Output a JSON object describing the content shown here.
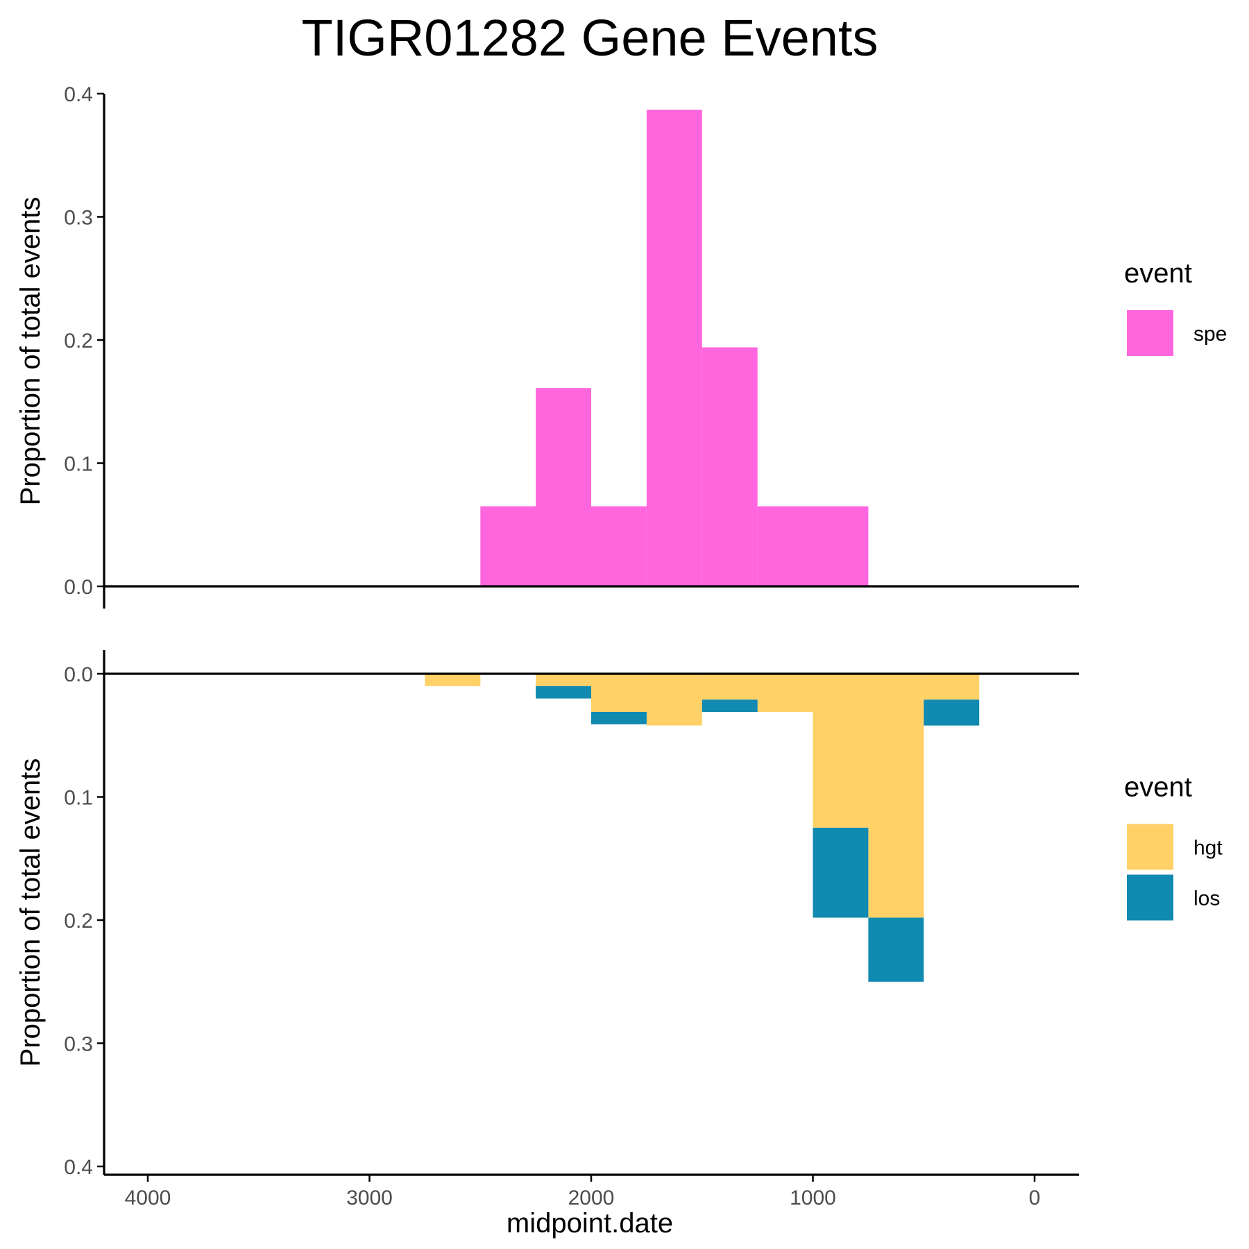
{
  "chart_data": {
    "title": "TIGR01282 Gene Events",
    "xlabel": "midpoint.date",
    "x_axis": {
      "reversed": true,
      "xlim": [
        4200,
        -200
      ],
      "ticks": [
        4000,
        3000,
        2000,
        1000,
        0
      ],
      "tick_labels": [
        "4000",
        "3000",
        "2000",
        "1000",
        "0"
      ]
    },
    "bin_width": 250,
    "panels": [
      {
        "type": "bar",
        "stacked": true,
        "ylabel": "Proportion of total events",
        "ylim": [
          0,
          0.4
        ],
        "y_direction": "up",
        "y_ticks": [
          0.0,
          0.1,
          0.2,
          0.3,
          0.4
        ],
        "y_tick_labels": [
          "0.0",
          "0.1",
          "0.2",
          "0.3",
          "0.4"
        ],
        "legend": {
          "title": "event",
          "position": "right"
        },
        "series": [
          {
            "name": "spe",
            "color": "#FF66DD",
            "bins": [
              {
                "x": [
                  2250,
                  2500
                ],
                "value": 0.065
              },
              {
                "x": [
                  2000,
                  2250
                ],
                "value": 0.161
              },
              {
                "x": [
                  1750,
                  2000
                ],
                "value": 0.065
              },
              {
                "x": [
                  1500,
                  1750
                ],
                "value": 0.387
              },
              {
                "x": [
                  1250,
                  1500
                ],
                "value": 0.194
              },
              {
                "x": [
                  1000,
                  1250
                ],
                "value": 0.065
              },
              {
                "x": [
                  750,
                  1000
                ],
                "value": 0.065
              }
            ]
          }
        ]
      },
      {
        "type": "bar",
        "stacked": true,
        "ylabel": "Proportion of total events",
        "ylim": [
          0,
          0.4
        ],
        "y_direction": "down",
        "y_ticks": [
          0.0,
          0.1,
          0.2,
          0.3,
          0.4
        ],
        "y_tick_labels": [
          "0.0",
          "0.1",
          "0.2",
          "0.3",
          "0.4"
        ],
        "legend": {
          "title": "event",
          "position": "right"
        },
        "series": [
          {
            "name": "hgt",
            "color": "#FFD166",
            "bins": [
              {
                "x": [
                  2500,
                  2750
                ],
                "value": 0.01
              },
              {
                "x": [
                  2000,
                  2250
                ],
                "value": 0.01
              },
              {
                "x": [
                  1750,
                  2000
                ],
                "value": 0.031
              },
              {
                "x": [
                  1500,
                  1750
                ],
                "value": 0.042
              },
              {
                "x": [
                  1250,
                  1500
                ],
                "value": 0.021
              },
              {
                "x": [
                  1000,
                  1250
                ],
                "value": 0.031
              },
              {
                "x": [
                  750,
                  1000
                ],
                "value": 0.125
              },
              {
                "x": [
                  500,
                  750
                ],
                "value": 0.198
              },
              {
                "x": [
                  250,
                  500
                ],
                "value": 0.021
              }
            ]
          },
          {
            "name": "los",
            "color": "#118AB2",
            "bins": [
              {
                "x": [
                  2000,
                  2250
                ],
                "value": 0.01
              },
              {
                "x": [
                  1750,
                  2000
                ],
                "value": 0.01
              },
              {
                "x": [
                  1250,
                  1500
                ],
                "value": 0.01
              },
              {
                "x": [
                  750,
                  1000
                ],
                "value": 0.073
              },
              {
                "x": [
                  500,
                  750
                ],
                "value": 0.052
              },
              {
                "x": [
                  250,
                  500
                ],
                "value": 0.021
              }
            ]
          }
        ]
      }
    ]
  }
}
